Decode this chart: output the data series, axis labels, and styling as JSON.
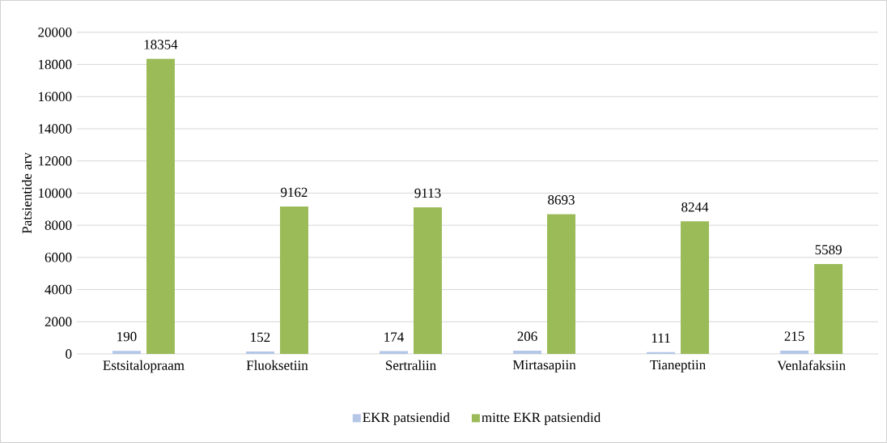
{
  "chart_data": {
    "type": "bar",
    "ylabel": "Patsientide arv",
    "categories": [
      "Estsitalopraam",
      "Fluoksetiin",
      "Sertraliin",
      "Mirtasapiin",
      "Tianeptiin",
      "Venlafaksiin"
    ],
    "series": [
      {
        "name": "EKR patsiendid",
        "color": "#b4c7e7",
        "values": [
          190,
          152,
          174,
          206,
          111,
          215
        ]
      },
      {
        "name": "mitte EKR patsiendid",
        "color": "#9bbb59",
        "values": [
          18354,
          9162,
          9113,
          8693,
          8244,
          5589
        ]
      }
    ],
    "ylim": [
      0,
      20000
    ],
    "yticks": [
      0,
      2000,
      4000,
      6000,
      8000,
      10000,
      12000,
      14000,
      16000,
      18000,
      20000
    ],
    "grid": "y",
    "legend": "bottom",
    "data_labels": true
  }
}
